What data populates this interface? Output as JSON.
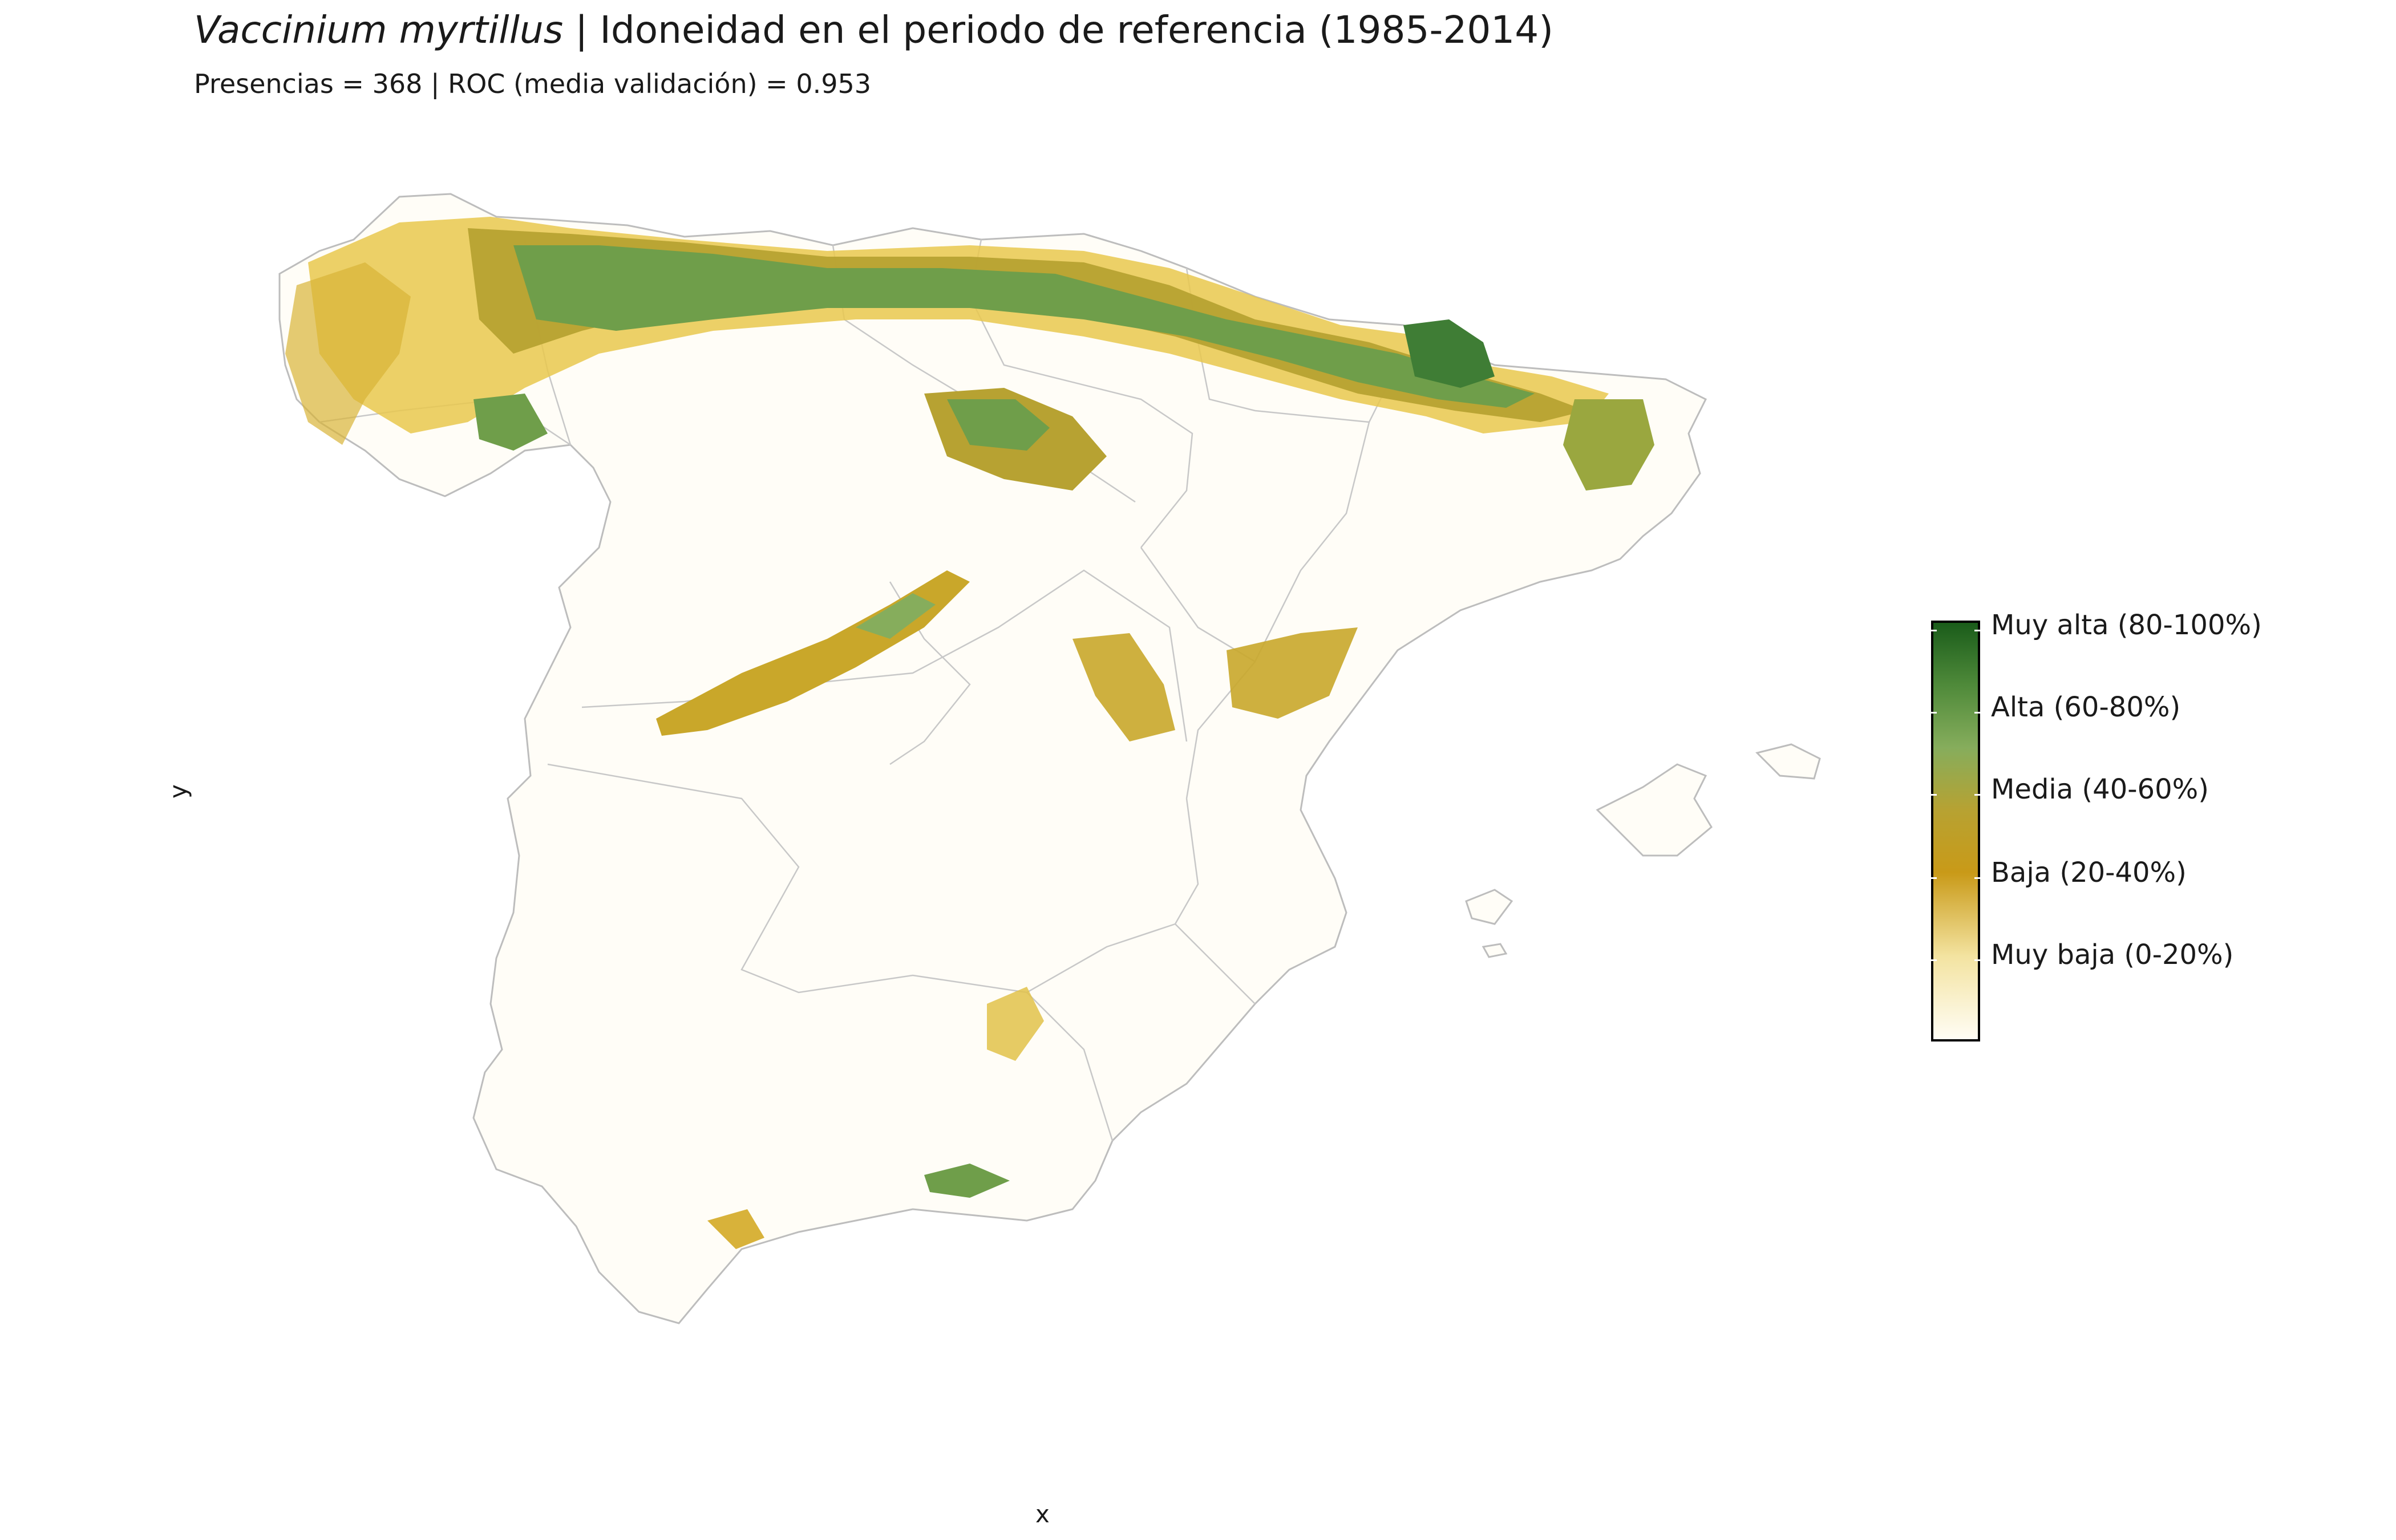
{
  "title": {
    "species": "Vaccinium myrtillus",
    "rest": " | Idoneidad en el periodo de referencia (1985-2014)"
  },
  "subtitle": "Presencias = 368  |  ROC (media validación) = 0.953",
  "axes": {
    "x": "x",
    "y": "y"
  },
  "legend": {
    "labels": [
      "Muy alta (80-100%)",
      "Alta (60-80%)",
      "Media (40-60%)",
      "Baja (20-40%)",
      "Muy baja (0-20%)"
    ],
    "colors": [
      "#1a5c1a",
      "#4f8a3a",
      "#86ad5c",
      "#b7a232",
      "#c99a18",
      "#f3e3a0",
      "#fffdf5"
    ]
  }
}
